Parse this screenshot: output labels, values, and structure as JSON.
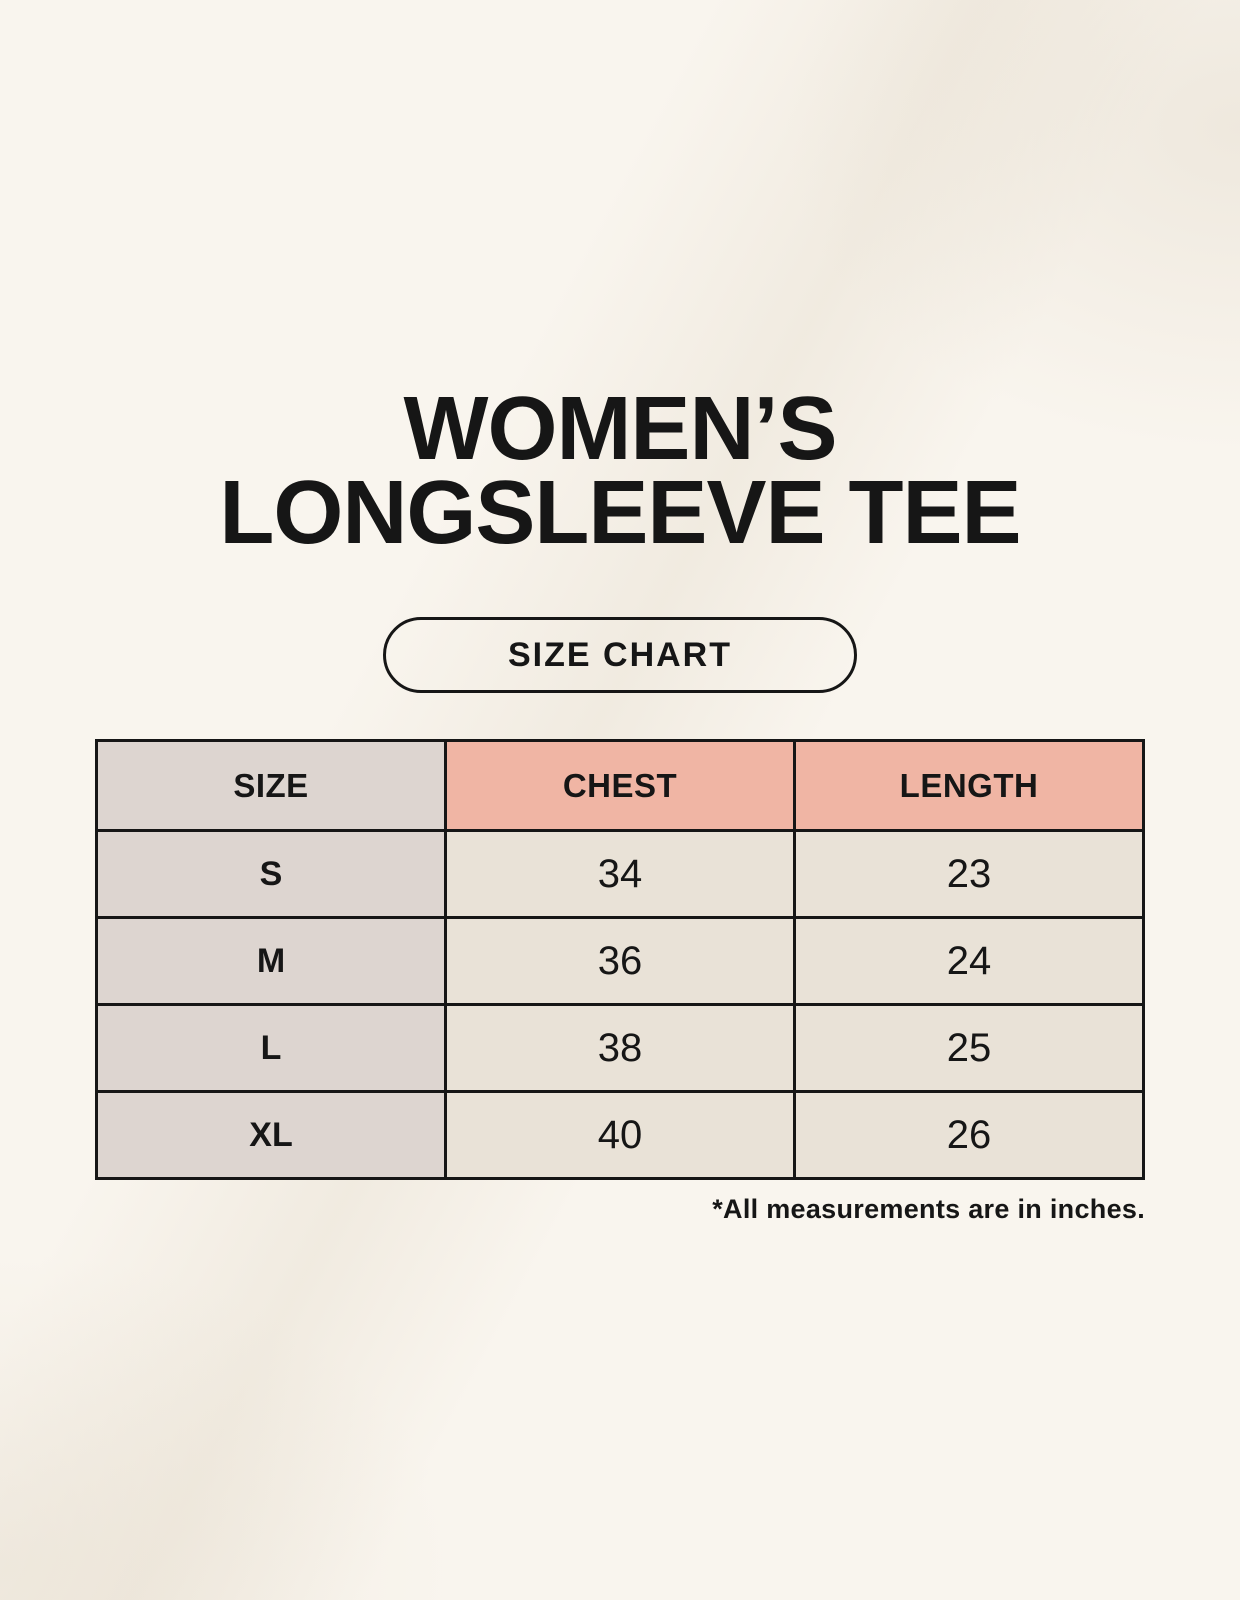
{
  "header": {
    "title_line1": "WOMEN’S",
    "title_line2": "LONGSLEEVE TEE",
    "badge_label": "SIZE CHART"
  },
  "table": {
    "columns": [
      "SIZE",
      "CHEST",
      "LENGTH"
    ],
    "rows": [
      {
        "size": "S",
        "chest": "34",
        "length": "23"
      },
      {
        "size": "M",
        "chest": "36",
        "length": "24"
      },
      {
        "size": "L",
        "chest": "38",
        "length": "25"
      },
      {
        "size": "XL",
        "chest": "40",
        "length": "26"
      }
    ]
  },
  "footnote": "*All measurements are in inches.",
  "colors": {
    "background": "#f9f5ee",
    "size_column_bg": "#ddd5d0",
    "header_accent_bg": "#f0b5a4",
    "cell_bg": "#e9e2d7",
    "border": "#161616",
    "text": "#161616"
  },
  "chart_data": {
    "type": "table",
    "title": "WOMEN’S LONGSLEEVE TEE",
    "subtitle": "SIZE CHART",
    "columns": [
      "SIZE",
      "CHEST",
      "LENGTH"
    ],
    "rows": [
      [
        "S",
        34,
        23
      ],
      [
        "M",
        36,
        24
      ],
      [
        "L",
        38,
        25
      ],
      [
        "XL",
        40,
        26
      ]
    ],
    "units": "inches",
    "note": "*All measurements are in inches."
  }
}
